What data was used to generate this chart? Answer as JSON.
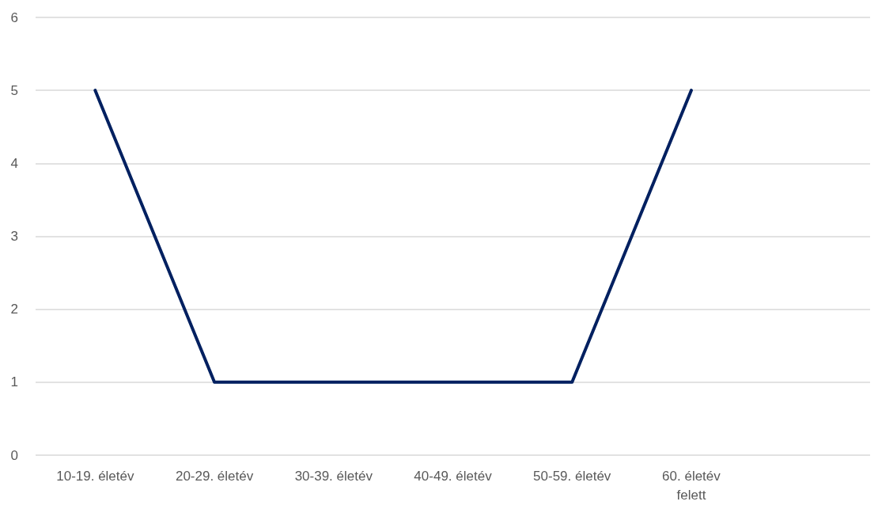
{
  "chart_data": {
    "type": "line",
    "categories": [
      "10-19. életév",
      "20-29. életév",
      "30-39. életév",
      "40-49. életév",
      "50-59. életév",
      "60. életév\nfelett",
      null
    ],
    "series": [
      {
        "color": "#002060",
        "values": [
          5,
          1,
          1,
          1,
          1,
          5,
          null
        ]
      }
    ],
    "ylim": [
      0,
      6
    ],
    "yticks": [
      0,
      1,
      2,
      3,
      4,
      5,
      6
    ],
    "grid": "y",
    "marker": "none",
    "line_style": "solid"
  }
}
